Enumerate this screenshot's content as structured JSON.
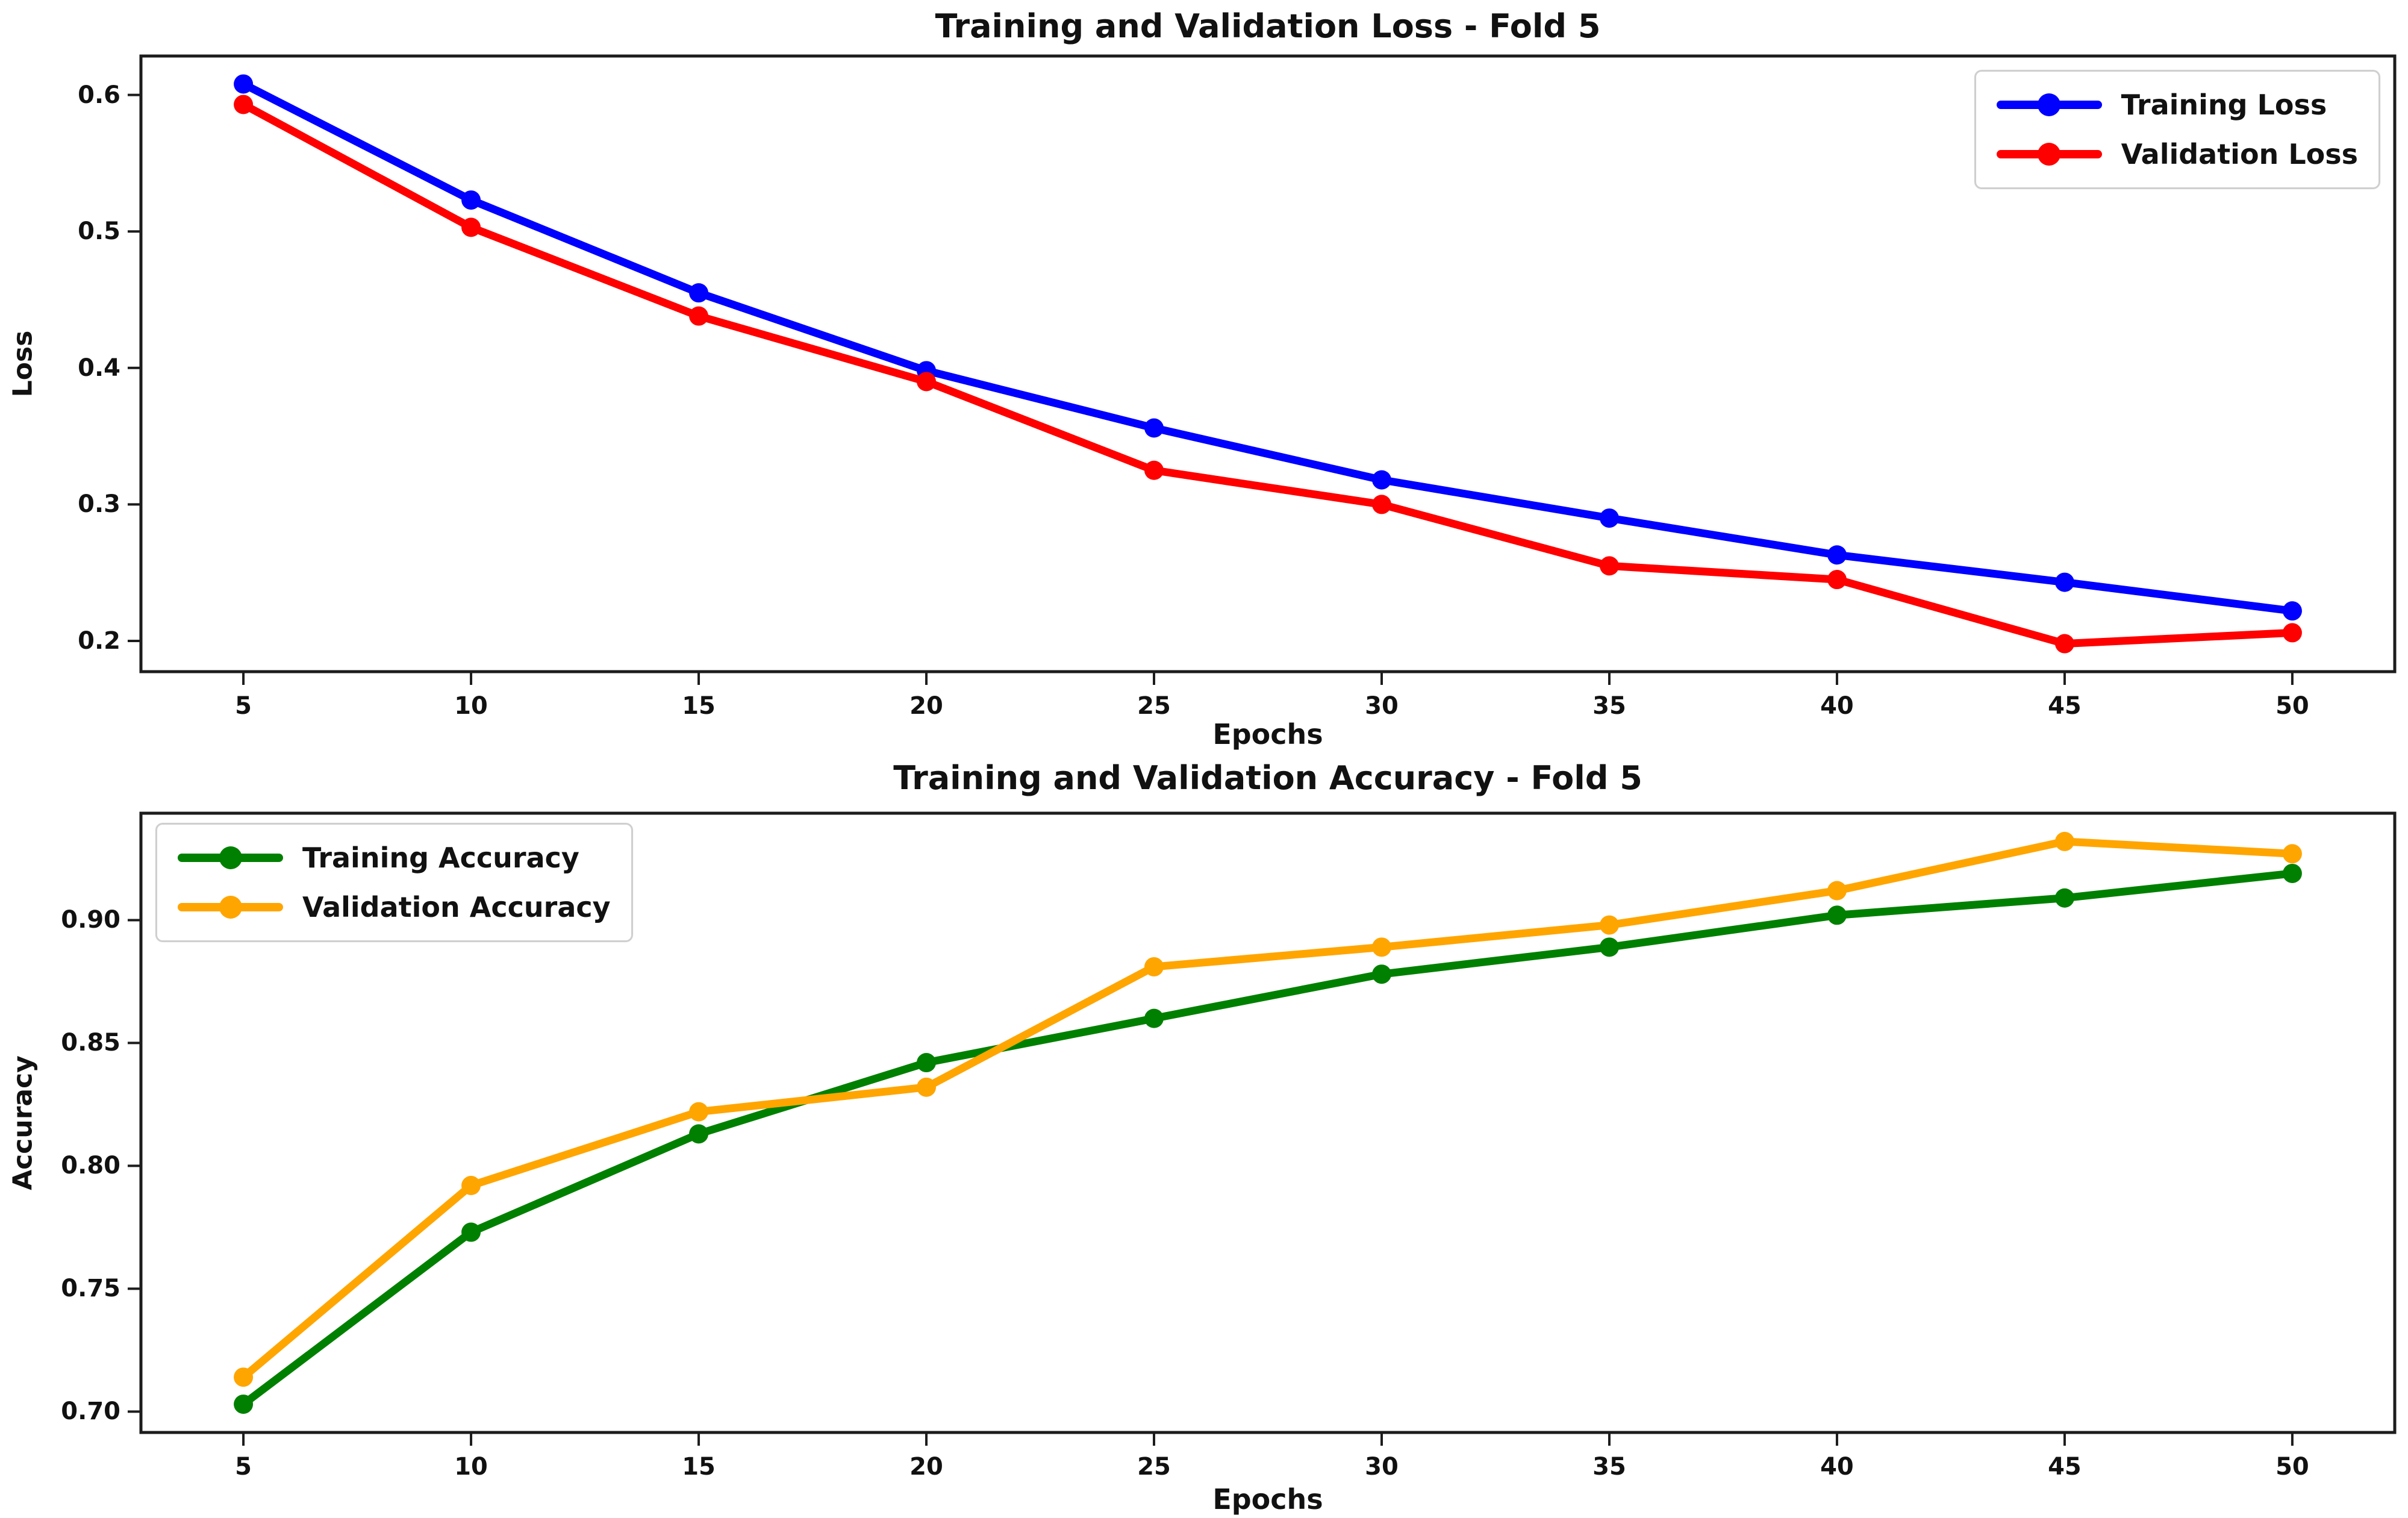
{
  "figure": {
    "background": "#ffffff",
    "text_color": "#111111",
    "spine_color": "#1c1c1c"
  },
  "chart_data": [
    {
      "type": "line",
      "title": "Training and Validation Loss - Fold 5",
      "xlabel": "Epochs",
      "ylabel": "Loss",
      "x": [
        5,
        10,
        15,
        20,
        25,
        30,
        35,
        40,
        45,
        50
      ],
      "series": [
        {
          "name": "Training Loss",
          "color": "#0000ff",
          "values": [
            0.608,
            0.523,
            0.455,
            0.398,
            0.356,
            0.318,
            0.29,
            0.263,
            0.243,
            0.222
          ]
        },
        {
          "name": "Validation Loss",
          "color": "#ff0000",
          "values": [
            0.593,
            0.503,
            0.438,
            0.39,
            0.325,
            0.3,
            0.255,
            0.245,
            0.198,
            0.206
          ]
        }
      ],
      "xticks": [
        5,
        10,
        15,
        20,
        25,
        30,
        35,
        40,
        45,
        50
      ],
      "xtick_labels": [
        "5",
        "10",
        "15",
        "20",
        "25",
        "30",
        "35",
        "40",
        "45",
        "50"
      ],
      "yticks": [
        0.6,
        0.5,
        0.4,
        0.3,
        0.2
      ],
      "ytick_labels": [
        "0.6",
        "0.5",
        "0.4",
        "0.3",
        "0.2"
      ],
      "xlim": [
        2.75,
        52.25
      ],
      "ylim": [
        0.1775,
        0.6285
      ],
      "grid": false,
      "legend_position": "upper-right"
    },
    {
      "type": "line",
      "title": "Training and Validation Accuracy - Fold 5",
      "xlabel": "Epochs",
      "ylabel": "Accuracy",
      "x": [
        5,
        10,
        15,
        20,
        25,
        30,
        35,
        40,
        45,
        50
      ],
      "series": [
        {
          "name": "Training Accuracy",
          "color": "#008000",
          "values": [
            0.703,
            0.773,
            0.813,
            0.842,
            0.86,
            0.878,
            0.889,
            0.902,
            0.909,
            0.919
          ]
        },
        {
          "name": "Validation Accuracy",
          "color": "#ffa500",
          "values": [
            0.714,
            0.792,
            0.822,
            0.832,
            0.881,
            0.889,
            0.898,
            0.912,
            0.932,
            0.927
          ]
        }
      ],
      "xticks": [
        5,
        10,
        15,
        20,
        25,
        30,
        35,
        40,
        45,
        50
      ],
      "xtick_labels": [
        "5",
        "10",
        "15",
        "20",
        "25",
        "30",
        "35",
        "40",
        "45",
        "50"
      ],
      "yticks": [
        0.9,
        0.85,
        0.8,
        0.75,
        0.7
      ],
      "ytick_labels": [
        "0.90",
        "0.85",
        "0.80",
        "0.75",
        "0.70"
      ],
      "xlim": [
        2.75,
        52.25
      ],
      "ylim": [
        0.6915,
        0.9435
      ],
      "grid": false,
      "legend_position": "upper-left"
    }
  ]
}
